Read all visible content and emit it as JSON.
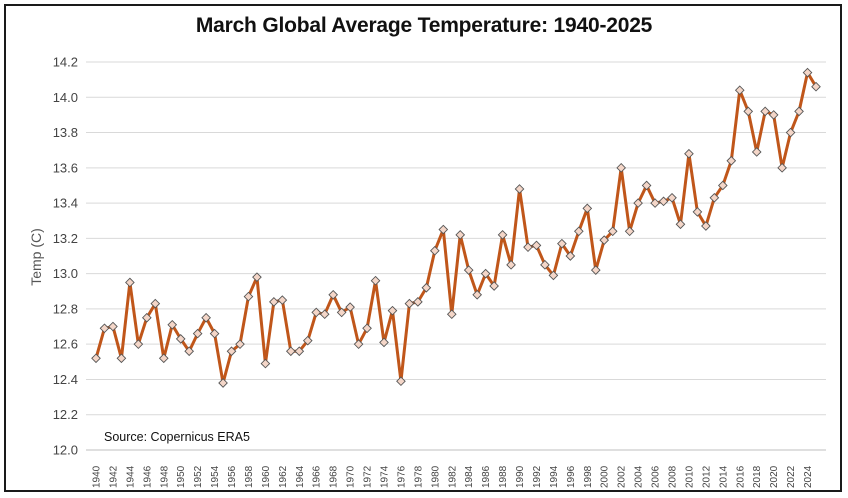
{
  "chart_data": {
    "type": "line",
    "title": "March Global Average Temperature: 1940-2025",
    "xlabel": "",
    "ylabel": "Temp (C)",
    "ylim": [
      12.0,
      14.2
    ],
    "yticks": [
      "12.0",
      "12.2",
      "12.4",
      "12.6",
      "12.8",
      "13.0",
      "13.2",
      "13.4",
      "13.6",
      "13.8",
      "14.0",
      "14.2"
    ],
    "xtick_labels": [
      "1940",
      "1942",
      "1944",
      "1946",
      "1948",
      "1950",
      "1952",
      "1954",
      "1956",
      "1958",
      "1960",
      "1962",
      "1964",
      "1966",
      "1968",
      "1970",
      "1972",
      "1974",
      "1976",
      "1978",
      "1980",
      "1982",
      "1984",
      "1986",
      "1988",
      "1990",
      "1992",
      "1994",
      "1996",
      "1998",
      "2000",
      "2002",
      "2004",
      "2006",
      "2008",
      "2010",
      "2012",
      "2014",
      "2016",
      "2018",
      "2020",
      "2022",
      "2024"
    ],
    "annotation": "Source: Copernicus ERA5",
    "grid": "horizontal",
    "line_color": "#c0561a",
    "marker_fill": "#f4d6c8",
    "marker_stroke": "#555555",
    "series": [
      {
        "name": "Temp (C)",
        "x": [
          1940,
          1941,
          1942,
          1943,
          1944,
          1945,
          1946,
          1947,
          1948,
          1949,
          1950,
          1951,
          1952,
          1953,
          1954,
          1955,
          1956,
          1957,
          1958,
          1959,
          1960,
          1961,
          1962,
          1963,
          1964,
          1965,
          1966,
          1967,
          1968,
          1969,
          1970,
          1971,
          1972,
          1973,
          1974,
          1975,
          1976,
          1977,
          1978,
          1979,
          1980,
          1981,
          1982,
          1983,
          1984,
          1985,
          1986,
          1987,
          1988,
          1989,
          1990,
          1991,
          1992,
          1993,
          1994,
          1995,
          1996,
          1997,
          1998,
          1999,
          2000,
          2001,
          2002,
          2003,
          2004,
          2005,
          2006,
          2007,
          2008,
          2009,
          2010,
          2011,
          2012,
          2013,
          2014,
          2015,
          2016,
          2017,
          2018,
          2019,
          2020,
          2021,
          2022,
          2023,
          2024,
          2025
        ],
        "values": [
          12.52,
          12.69,
          12.7,
          12.52,
          12.95,
          12.6,
          12.75,
          12.83,
          12.52,
          12.71,
          12.63,
          12.56,
          12.66,
          12.75,
          12.66,
          12.38,
          12.56,
          12.6,
          12.87,
          12.98,
          12.49,
          12.84,
          12.85,
          12.56,
          12.56,
          12.62,
          12.78,
          12.77,
          12.88,
          12.78,
          12.81,
          12.6,
          12.69,
          12.96,
          12.61,
          12.79,
          12.39,
          12.83,
          12.84,
          12.92,
          13.13,
          13.25,
          12.77,
          13.22,
          13.02,
          12.88,
          13.0,
          12.93,
          13.22,
          13.05,
          13.48,
          13.15,
          13.16,
          13.05,
          12.99,
          13.17,
          13.1,
          13.24,
          13.37,
          13.02,
          13.19,
          13.24,
          13.6,
          13.24,
          13.4,
          13.5,
          13.4,
          13.41,
          13.43,
          13.28,
          13.68,
          13.35,
          13.27,
          13.43,
          13.5,
          13.64,
          14.04,
          13.92,
          13.69,
          13.92,
          13.9,
          13.6,
          13.8,
          13.92,
          14.14,
          14.06
        ]
      }
    ]
  }
}
